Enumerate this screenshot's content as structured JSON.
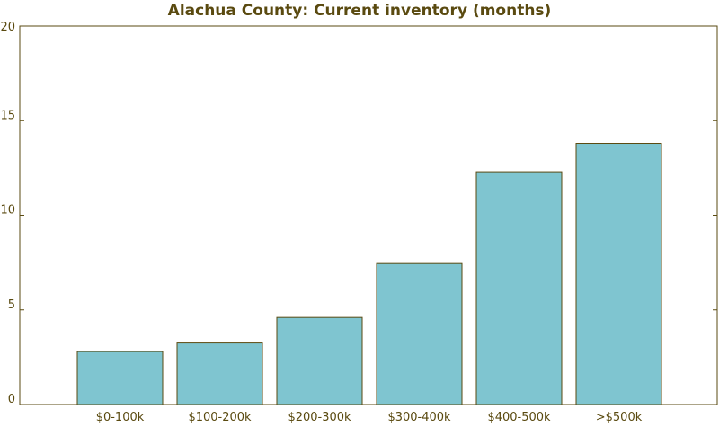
{
  "colors": {
    "title": "#5a4a10",
    "text": "#5a4a10",
    "axis": "#5a4a10",
    "bar_fill": "#7fc5d0",
    "bar_stroke": "#5a4a10",
    "background": "#ffffff"
  },
  "chart_data": {
    "type": "bar",
    "title": "Alachua County: Current inventory (months)",
    "xlabel": "",
    "ylabel": "",
    "categories": [
      "$0-100k",
      "$100-200k",
      "$200-300k",
      "$300-400k",
      "$400-500k",
      ">$500k"
    ],
    "values": [
      2.8,
      3.25,
      4.6,
      7.45,
      12.3,
      13.8
    ],
    "ylim": [
      0,
      20
    ],
    "yticks": [
      0,
      5,
      10,
      15,
      20
    ],
    "grid": false,
    "legend": "none"
  }
}
